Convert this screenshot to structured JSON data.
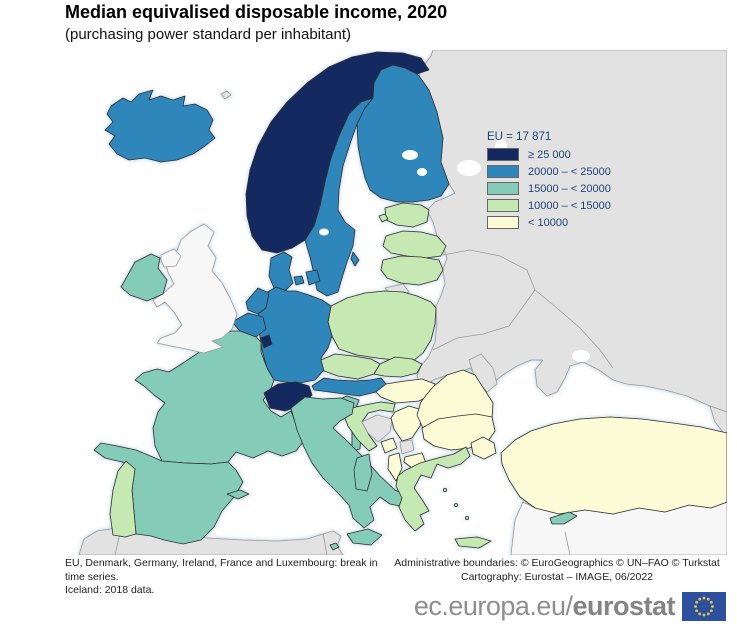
{
  "title": "Median equivalised disposable income, 2020",
  "subtitle": "(purchasing power standard per inhabitant)",
  "legend": {
    "eu_value_label": "EU = 17 871",
    "items": [
      {
        "label": "≥ 25 000",
        "color": "#13295f"
      },
      {
        "label": "20000 – < 25000",
        "color": "#2e86ba"
      },
      {
        "label": "15000 – < 20000",
        "color": "#85ccb8"
      },
      {
        "label": "10000 – < 15000",
        "color": "#c6e8b2"
      },
      {
        "label": "< 10000",
        "color": "#fbfcd6"
      }
    ]
  },
  "map": {
    "class_colors": {
      "gte_25000": "#13295f",
      "20000_25000": "#2e86ba",
      "15000_20000": "#85ccb8",
      "10000_15000": "#c6e8b2",
      "lt_10000": "#fbfcd6",
      "no_data": "#e2e2e2",
      "no_data_light": "#f7f7f7"
    },
    "countries": {
      "iceland": "20000_25000",
      "norway": "gte_25000",
      "sweden": "20000_25000",
      "finland": "20000_25000",
      "denmark": "20000_25000",
      "estonia": "10000_15000",
      "latvia": "10000_15000",
      "lithuania": "10000_15000",
      "poland": "10000_15000",
      "germany": "20000_25000",
      "netherlands": "20000_25000",
      "belgium": "20000_25000",
      "luxembourg": "gte_25000",
      "france": "15000_20000",
      "switzerland": "gte_25000",
      "austria": "20000_25000",
      "czechia": "10000_15000",
      "slovakia": "10000_15000",
      "hungary": "lt_10000",
      "slovenia": "15000_20000",
      "croatia": "10000_15000",
      "italy": "15000_20000",
      "spain": "15000_20000",
      "portugal": "10000_15000",
      "ireland": "15000_20000",
      "uk": "no_data_light",
      "greece": "10000_15000",
      "bulgaria": "lt_10000",
      "romania": "lt_10000",
      "serbia": "lt_10000",
      "bosnia": "no_data",
      "montenegro": "lt_10000",
      "kosovo": "no_data",
      "albania": "lt_10000",
      "north_macedonia": "lt_10000",
      "moldova": "no_data",
      "turkey": "lt_10000",
      "cyprus": "15000_20000",
      "malta": "15000_20000",
      "russia_east": "no_data",
      "kaliningrad": "no_data",
      "georgia": "no_data",
      "faroe": "no_data",
      "north_africa": "no_data",
      "middle_east": "no_data_light"
    }
  },
  "footnotes": {
    "left_line1": "EU, Denmark, Germany, Ireland, France and Luxembourg: break in",
    "left_line2": "time series.",
    "left_line3": "Iceland: 2018 data.",
    "right_line1": "Administrative boundaries: © EuroGeographics © UN–FAO © Turkstat",
    "right_line2": "Cartography: Eurostat – IMAGE, 06/2022"
  },
  "branding": {
    "url_prefix": "ec.europa.eu/",
    "url_bold": "eurostat",
    "flag_blue": "#2e4f9e",
    "flag_star": "#ddcd3e"
  }
}
